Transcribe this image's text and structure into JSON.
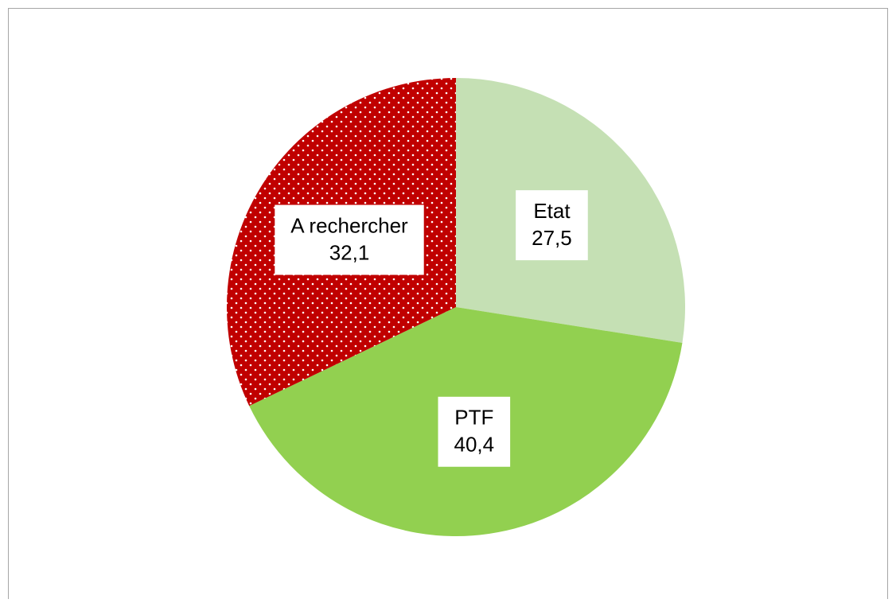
{
  "chart_data": {
    "type": "pie",
    "categories": [
      "Etat",
      "PTF",
      "A rechercher"
    ],
    "values": [
      27.5,
      40.4,
      32.1
    ],
    "value_labels": [
      "27,5",
      "40,4",
      "32,1"
    ],
    "colors": [
      "#c5e0b4",
      "#92d050",
      "#c00000"
    ],
    "patterns": [
      "none",
      "none",
      "dots"
    ]
  }
}
